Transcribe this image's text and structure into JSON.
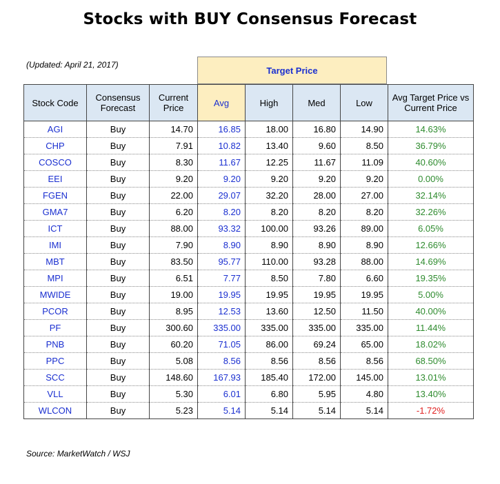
{
  "title": "Stocks with BUY Consensus Forecast",
  "updated": "(Updated: April 21, 2017)",
  "target_price_label": "Target Price",
  "headers": {
    "code": "Stock Code",
    "consensus": "Consensus Forecast",
    "current": "Current Price",
    "avg": "Avg",
    "high": "High",
    "med": "Med",
    "low": "Low",
    "pct": "Avg Target Price vs Current Price"
  },
  "rows": [
    {
      "code": "AGI",
      "consensus": "Buy",
      "current": "14.70",
      "avg": "16.85",
      "high": "18.00",
      "med": "16.80",
      "low": "14.90",
      "pct": "14.63%"
    },
    {
      "code": "CHP",
      "consensus": "Buy",
      "current": "7.91",
      "avg": "10.82",
      "high": "13.40",
      "med": "9.60",
      "low": "8.50",
      "pct": "36.79%"
    },
    {
      "code": "COSCO",
      "consensus": "Buy",
      "current": "8.30",
      "avg": "11.67",
      "high": "12.25",
      "med": "11.67",
      "low": "11.09",
      "pct": "40.60%"
    },
    {
      "code": "EEI",
      "consensus": "Buy",
      "current": "9.20",
      "avg": "9.20",
      "high": "9.20",
      "med": "9.20",
      "low": "9.20",
      "pct": "0.00%"
    },
    {
      "code": "FGEN",
      "consensus": "Buy",
      "current": "22.00",
      "avg": "29.07",
      "high": "32.20",
      "med": "28.00",
      "low": "27.00",
      "pct": "32.14%"
    },
    {
      "code": "GMA7",
      "consensus": "Buy",
      "current": "6.20",
      "avg": "8.20",
      "high": "8.20",
      "med": "8.20",
      "low": "8.20",
      "pct": "32.26%"
    },
    {
      "code": "ICT",
      "consensus": "Buy",
      "current": "88.00",
      "avg": "93.32",
      "high": "100.00",
      "med": "93.26",
      "low": "89.00",
      "pct": "6.05%"
    },
    {
      "code": "IMI",
      "consensus": "Buy",
      "current": "7.90",
      "avg": "8.90",
      "high": "8.90",
      "med": "8.90",
      "low": "8.90",
      "pct": "12.66%"
    },
    {
      "code": "MBT",
      "consensus": "Buy",
      "current": "83.50",
      "avg": "95.77",
      "high": "110.00",
      "med": "93.28",
      "low": "88.00",
      "pct": "14.69%"
    },
    {
      "code": "MPI",
      "consensus": "Buy",
      "current": "6.51",
      "avg": "7.77",
      "high": "8.50",
      "med": "7.80",
      "low": "6.60",
      "pct": "19.35%"
    },
    {
      "code": "MWIDE",
      "consensus": "Buy",
      "current": "19.00",
      "avg": "19.95",
      "high": "19.95",
      "med": "19.95",
      "low": "19.95",
      "pct": "5.00%"
    },
    {
      "code": "PCOR",
      "consensus": "Buy",
      "current": "8.95",
      "avg": "12.53",
      "high": "13.60",
      "med": "12.50",
      "low": "11.50",
      "pct": "40.00%"
    },
    {
      "code": "PF",
      "consensus": "Buy",
      "current": "300.60",
      "avg": "335.00",
      "high": "335.00",
      "med": "335.00",
      "low": "335.00",
      "pct": "11.44%"
    },
    {
      "code": "PNB",
      "consensus": "Buy",
      "current": "60.20",
      "avg": "71.05",
      "high": "86.00",
      "med": "69.24",
      "low": "65.00",
      "pct": "18.02%"
    },
    {
      "code": "PPC",
      "consensus": "Buy",
      "current": "5.08",
      "avg": "8.56",
      "high": "8.56",
      "med": "8.56",
      "low": "8.56",
      "pct": "68.50%"
    },
    {
      "code": "SCC",
      "consensus": "Buy",
      "current": "148.60",
      "avg": "167.93",
      "high": "185.40",
      "med": "172.00",
      "low": "145.00",
      "pct": "13.01%"
    },
    {
      "code": "VLL",
      "consensus": "Buy",
      "current": "5.30",
      "avg": "6.01",
      "high": "6.80",
      "med": "5.95",
      "low": "4.80",
      "pct": "13.40%"
    },
    {
      "code": "WLCON",
      "consensus": "Buy",
      "current": "5.23",
      "avg": "5.14",
      "high": "5.14",
      "med": "5.14",
      "low": "5.14",
      "pct": "-1.72%"
    }
  ],
  "colors": {
    "header_bg": "#dbe7f3",
    "target_price_bg": "#fdeec0",
    "link_blue": "#1a2fd0",
    "positive_green": "#2e8b2e",
    "negative_red": "#e02020"
  },
  "source": "Source: MarketWatch / WSJ"
}
